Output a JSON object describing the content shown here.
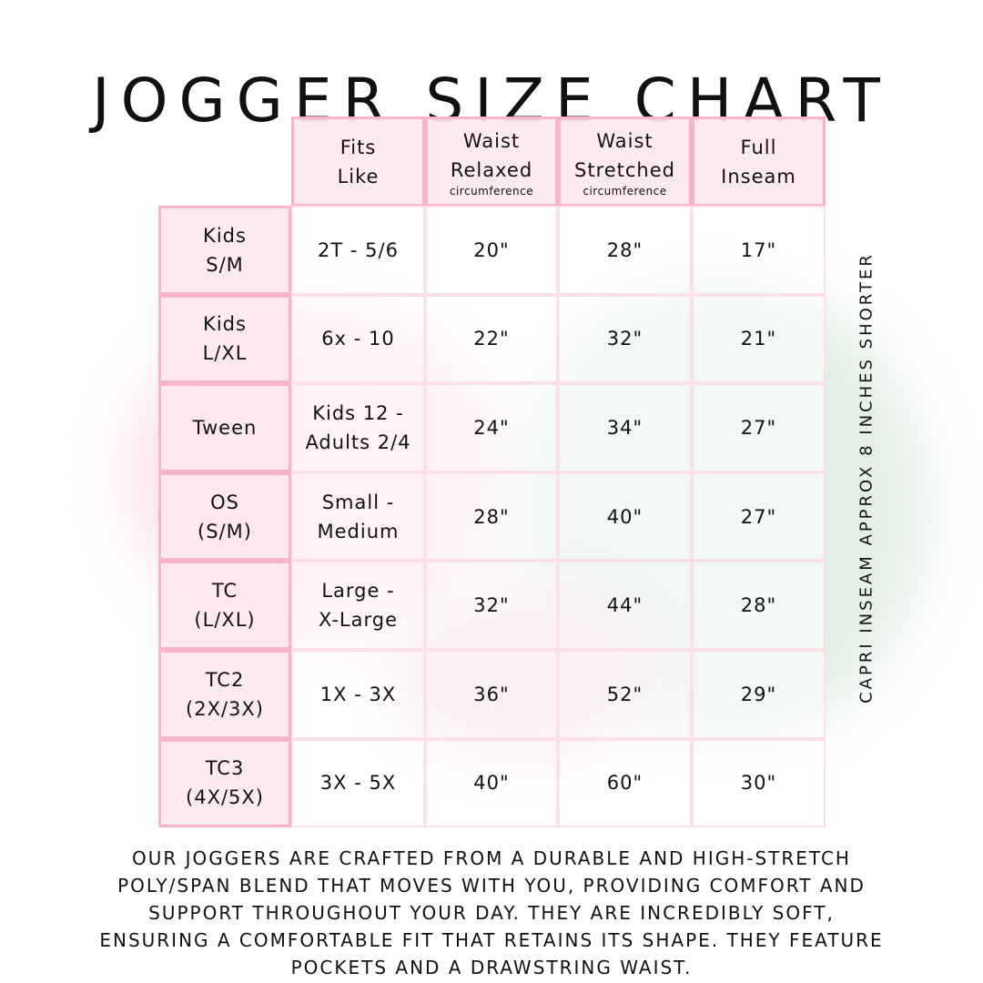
{
  "title": "JOGGER SIZE CHART",
  "columns": [
    {
      "lines": [
        "Fits",
        "Like"
      ],
      "sub": ""
    },
    {
      "lines": [
        "Waist",
        "Relaxed"
      ],
      "sub": "circumference"
    },
    {
      "lines": [
        "Waist",
        "Stretched"
      ],
      "sub": "circumference"
    },
    {
      "lines": [
        "Full",
        "Inseam"
      ],
      "sub": ""
    }
  ],
  "rows": [
    {
      "size": [
        "Kids",
        "S/M"
      ],
      "fits": [
        "2T - 5/6"
      ],
      "relaxed": "20\"",
      "stretched": "28\"",
      "inseam": "17\""
    },
    {
      "size": [
        "Kids",
        "L/XL"
      ],
      "fits": [
        "6x - 10"
      ],
      "relaxed": "22\"",
      "stretched": "32\"",
      "inseam": "21\""
    },
    {
      "size": [
        "Tween"
      ],
      "fits": [
        "Kids 12 -",
        "Adults 2/4"
      ],
      "relaxed": "24\"",
      "stretched": "34\"",
      "inseam": "27\""
    },
    {
      "size": [
        "OS",
        "(S/M)"
      ],
      "fits": [
        "Small -",
        "Medium"
      ],
      "relaxed": "28\"",
      "stretched": "40\"",
      "inseam": "27\""
    },
    {
      "size": [
        "TC",
        "(L/XL)"
      ],
      "fits": [
        "Large -",
        "X-Large"
      ],
      "relaxed": "32\"",
      "stretched": "44\"",
      "inseam": "28\""
    },
    {
      "size": [
        "TC2",
        "(2X/3X)"
      ],
      "fits": [
        "1X - 3X"
      ],
      "relaxed": "36\"",
      "stretched": "52\"",
      "inseam": "29\""
    },
    {
      "size": [
        "TC3",
        "(4X/5X)"
      ],
      "fits": [
        "3X - 5X"
      ],
      "relaxed": "40\"",
      "stretched": "60\"",
      "inseam": "30\""
    }
  ],
  "side_note": "CAPRI INSEAM APPROX 8 INCHES SHORTER",
  "description_lines": [
    "OUR JOGGERS ARE CRAFTED FROM A DURABLE AND HIGH-STRETCH",
    "POLY/SPAN BLEND THAT MOVES WITH YOU, PROVIDING COMFORT AND",
    "SUPPORT THROUGHOUT YOUR DAY. THEY ARE INCREDIBLY SOFT,",
    "ENSURING A COMFORTABLE FIT THAT RETAINS ITS SHAPE. THEY FEATURE",
    "POCKETS AND A DRAWSTRING WAIST."
  ],
  "colors": {
    "header_fill": "#fde8ef",
    "border": "#f6b5c9",
    "text": "#111111"
  }
}
